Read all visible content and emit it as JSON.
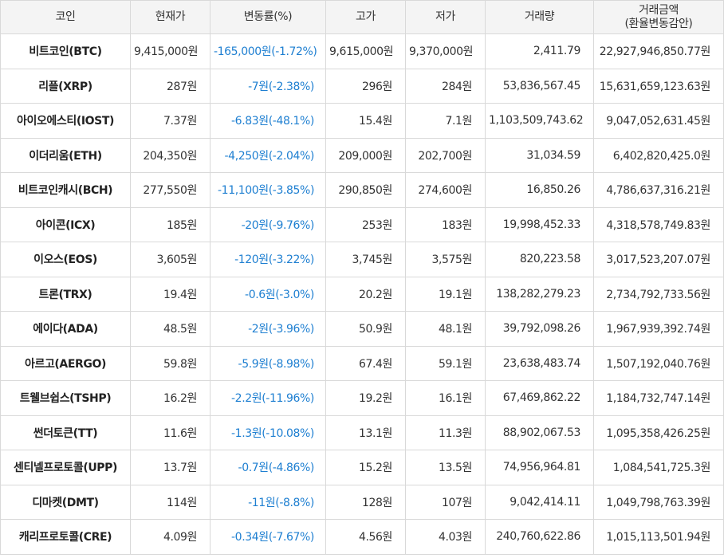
{
  "headers": {
    "coin": "코인",
    "price": "현재가",
    "change": "변동률(%)",
    "high": "고가",
    "low": "저가",
    "volume": "거래량",
    "amount_line1": "거래금액",
    "amount_line2": "(환율변동감안)"
  },
  "rows": [
    {
      "coin": "비트코인(BTC)",
      "price": "9,415,000원",
      "change": "-165,000원(-1.72%)",
      "high": "9,615,000원",
      "low": "9,370,000원",
      "volume": "2,411.79",
      "amount": "22,927,946,850.77원"
    },
    {
      "coin": "리플(XRP)",
      "price": "287원",
      "change": "-7원(-2.38%)",
      "high": "296원",
      "low": "284원",
      "volume": "53,836,567.45",
      "amount": "15,631,659,123.63원"
    },
    {
      "coin": "아이오에스티(IOST)",
      "price": "7.37원",
      "change": "-6.83원(-48.1%)",
      "high": "15.4원",
      "low": "7.1원",
      "volume": "1,103,509,743.62",
      "amount": "9,047,052,631.45원"
    },
    {
      "coin": "이더리움(ETH)",
      "price": "204,350원",
      "change": "-4,250원(-2.04%)",
      "high": "209,000원",
      "low": "202,700원",
      "volume": "31,034.59",
      "amount": "6,402,820,425.0원"
    },
    {
      "coin": "비트코인캐시(BCH)",
      "price": "277,550원",
      "change": "-11,100원(-3.85%)",
      "high": "290,850원",
      "low": "274,600원",
      "volume": "16,850.26",
      "amount": "4,786,637,316.21원"
    },
    {
      "coin": "아이콘(ICX)",
      "price": "185원",
      "change": "-20원(-9.76%)",
      "high": "253원",
      "low": "183원",
      "volume": "19,998,452.33",
      "amount": "4,318,578,749.83원"
    },
    {
      "coin": "이오스(EOS)",
      "price": "3,605원",
      "change": "-120원(-3.22%)",
      "high": "3,745원",
      "low": "3,575원",
      "volume": "820,223.58",
      "amount": "3,017,523,207.07원"
    },
    {
      "coin": "트론(TRX)",
      "price": "19.4원",
      "change": "-0.6원(-3.0%)",
      "high": "20.2원",
      "low": "19.1원",
      "volume": "138,282,279.23",
      "amount": "2,734,792,733.56원"
    },
    {
      "coin": "에이다(ADA)",
      "price": "48.5원",
      "change": "-2원(-3.96%)",
      "high": "50.9원",
      "low": "48.1원",
      "volume": "39,792,098.26",
      "amount": "1,967,939,392.74원"
    },
    {
      "coin": "아르고(AERGO)",
      "price": "59.8원",
      "change": "-5.9원(-8.98%)",
      "high": "67.4원",
      "low": "59.1원",
      "volume": "23,638,483.74",
      "amount": "1,507,192,040.76원"
    },
    {
      "coin": "트웰브쉽스(TSHP)",
      "price": "16.2원",
      "change": "-2.2원(-11.96%)",
      "high": "19.2원",
      "low": "16.1원",
      "volume": "67,469,862.22",
      "amount": "1,184,732,747.14원"
    },
    {
      "coin": "썬더토큰(TT)",
      "price": "11.6원",
      "change": "-1.3원(-10.08%)",
      "high": "13.1원",
      "low": "11.3원",
      "volume": "88,902,067.53",
      "amount": "1,095,358,426.25원"
    },
    {
      "coin": "센티넬프로토콜(UPP)",
      "price": "13.7원",
      "change": "-0.7원(-4.86%)",
      "high": "15.2원",
      "low": "13.5원",
      "volume": "74,956,964.81",
      "amount": "1,084,541,725.3원"
    },
    {
      "coin": "디마켓(DMT)",
      "price": "114원",
      "change": "-11원(-8.8%)",
      "high": "128원",
      "low": "107원",
      "volume": "9,042,414.11",
      "amount": "1,049,798,763.39원"
    },
    {
      "coin": "캐리프로토콜(CRE)",
      "price": "4.09원",
      "change": "-0.34원(-7.67%)",
      "high": "4.56원",
      "low": "4.03원",
      "volume": "240,760,622.86",
      "amount": "1,015,113,501.94원"
    }
  ],
  "colors": {
    "change_text": "#1e7fd1",
    "header_bg": "#f4f4f4",
    "border": "#d9d9d9"
  }
}
